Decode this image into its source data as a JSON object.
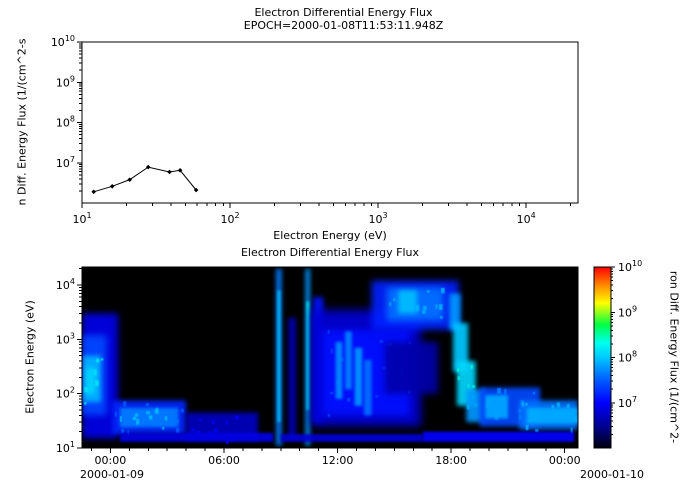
{
  "figure": {
    "bg_color": "#ffffff",
    "text_color": "#000000"
  },
  "chart_data": [
    {
      "type": "line",
      "panel": "top",
      "title": "Electron Differential Energy Flux",
      "subtitle": "EPOCH=2000-01-08T11:53:11.948Z",
      "xlabel": "Electron Energy (eV)",
      "ylabel": "n Diff. Energy Flux (1/(cm^2-s",
      "x_scale": "log",
      "y_scale": "log",
      "xlim": [
        10,
        22400
      ],
      "ylim": [
        1000000.0,
        10000000000.0
      ],
      "x_ticks": [
        10,
        100,
        1000,
        10000
      ],
      "y_ticks": [
        10000000.0,
        100000000.0,
        1000000000.0,
        10000000000.0
      ],
      "grid": false,
      "marker": "diamond",
      "line_color": "#000000",
      "points": [
        [
          12,
          1900000.0
        ],
        [
          16,
          2600000.0
        ],
        [
          21,
          3800000.0
        ],
        [
          28,
          7800000.0
        ],
        [
          39,
          5900000.0
        ],
        [
          46,
          6500000.0
        ],
        [
          59,
          2100000.0
        ]
      ]
    },
    {
      "type": "heatmap",
      "panel": "bottom",
      "title": "Electron Differential Energy Flux",
      "ylabel": "Electron Energy (eV)",
      "colorbar_label": "ron Diff. Energy Flux (1/(cm^2-",
      "x_scale": "time",
      "y_scale": "log",
      "time_range_hours": [
        -1.5,
        24.7
      ],
      "x_ticks_hours": [
        0,
        6,
        12,
        18,
        24
      ],
      "x_tick_labels": [
        "00:00",
        "06:00",
        "12:00",
        "18:00",
        "00:00"
      ],
      "x_minor_tick_every_hours": 1,
      "x_date_labels": [
        "2000-01-09",
        "2000-01-10"
      ],
      "energy_range": [
        10,
        21500
      ],
      "y_ticks": [
        10,
        100,
        1000,
        10000
      ],
      "flux_range": [
        1000000.0,
        10000000000.0
      ],
      "colorbar_ticks": [
        10000000.0,
        100000000.0,
        1000000000.0,
        10000000000.0
      ],
      "background": "#000000",
      "colormap": [
        [
          0,
          "#000010"
        ],
        [
          0.12,
          "#000090"
        ],
        [
          0.25,
          "#0000ff"
        ],
        [
          0.38,
          "#0060ff"
        ],
        [
          0.5,
          "#00c8ff"
        ],
        [
          0.58,
          "#00ffee"
        ],
        [
          0.68,
          "#00ff44"
        ],
        [
          0.8,
          "#ffff00"
        ],
        [
          0.9,
          "#ff8800"
        ],
        [
          1,
          "#ff0000"
        ]
      ],
      "noise_seed": 7,
      "features": [
        {
          "t": [
            -1.5,
            0.4
          ],
          "e": [
            15,
            3000
          ],
          "flux": 8000000.0,
          "blur": 3
        },
        {
          "t": [
            -1.5,
            -0.2
          ],
          "e": [
            40,
            1200
          ],
          "flux": 25000000.0,
          "blur": 3
        },
        {
          "t": [
            -1.45,
            -0.5
          ],
          "e": [
            70,
            500
          ],
          "flux": 80000000.0,
          "blur": 2,
          "speckle": 6
        },
        {
          "t": [
            -1.3,
            -0.8
          ],
          "e": [
            100,
            300
          ],
          "flux": 120000000.0,
          "blur": 2
        },
        {
          "t": [
            0.1,
            4.0
          ],
          "e": [
            18,
            75
          ],
          "flux": 16000000.0,
          "blur": 2,
          "speckle": 14
        },
        {
          "t": [
            0.5,
            3.6
          ],
          "e": [
            24,
            55
          ],
          "flux": 45000000.0,
          "blur": 1.5,
          "speckle": 10
        },
        {
          "t": [
            4.0,
            7.8
          ],
          "e": [
            14,
            45
          ],
          "flux": 5000000.0,
          "blur": 2,
          "speckle": 12
        },
        {
          "t": [
            8.75,
            9.05
          ],
          "e": [
            11,
            20000
          ],
          "flux": 45000000.0,
          "blur": 2
        },
        {
          "t": [
            8.82,
            8.98
          ],
          "e": [
            30,
            8000
          ],
          "flux": 90000000.0,
          "blur": 1
        },
        {
          "t": [
            9.4,
            9.8
          ],
          "e": [
            15,
            2500
          ],
          "flux": 4500000.0,
          "blur": 2
        },
        {
          "t": [
            10.3,
            10.55
          ],
          "e": [
            11,
            20000
          ],
          "flux": 60000000.0,
          "blur": 2
        },
        {
          "t": [
            10.36,
            10.5
          ],
          "e": [
            50,
            5000
          ],
          "flux": 180000000.0,
          "blur": 1
        },
        {
          "t": [
            10.7,
            11.25
          ],
          "e": [
            30,
            6000
          ],
          "flux": 13000000.0,
          "blur": 2.5
        },
        {
          "t": [
            10.6,
            16.4
          ],
          "e": [
            25,
            3500
          ],
          "flux": 6500000.0,
          "blur": 4
        },
        {
          "t": [
            11.2,
            15.8
          ],
          "e": [
            40,
            1500
          ],
          "flux": 12000000.0,
          "blur": 3,
          "speckle": 16
        },
        {
          "t": [
            11.9,
            12.25
          ],
          "e": [
            80,
            900
          ],
          "flux": 55000000.0,
          "blur": 1.5
        },
        {
          "t": [
            12.4,
            12.75
          ],
          "e": [
            120,
            1400
          ],
          "flux": 50000000.0,
          "blur": 1.5
        },
        {
          "t": [
            12.9,
            13.3
          ],
          "e": [
            60,
            700
          ],
          "flux": 60000000.0,
          "blur": 1.5
        },
        {
          "t": [
            13.4,
            13.8
          ],
          "e": [
            40,
            420
          ],
          "flux": 40000000.0,
          "blur": 1.5
        },
        {
          "t": [
            13.8,
            18.4
          ],
          "e": [
            1500,
            12000
          ],
          "flux": 15000000.0,
          "blur": 3
        },
        {
          "t": [
            14.6,
            17.6
          ],
          "e": [
            2200,
            9000
          ],
          "flux": 40000000.0,
          "blur": 3,
          "speckle": 10
        },
        {
          "t": [
            15.2,
            16.2
          ],
          "e": [
            3000,
            8000
          ],
          "flux": 90000000.0,
          "blur": 2
        },
        {
          "t": [
            14.5,
            17.3
          ],
          "e": [
            100,
            900
          ],
          "flux": 4000000.0,
          "blur": 3
        },
        {
          "t": [
            17.9,
            18.5
          ],
          "e": [
            1500,
            7000
          ],
          "flux": 60000000.0,
          "blur": 2
        },
        {
          "t": [
            18.1,
            18.9
          ],
          "e": [
            250,
            2000
          ],
          "flux": 100000000.0,
          "blur": 2
        },
        {
          "t": [
            18.3,
            19.3
          ],
          "e": [
            60,
            400
          ],
          "flux": 120000000.0,
          "blur": 2,
          "speckle": 8
        },
        {
          "t": [
            18.8,
            19.8
          ],
          "e": [
            30,
            120
          ],
          "flux": 60000000.0,
          "blur": 2
        },
        {
          "t": [
            19.5,
            22.7
          ],
          "e": [
            25,
            130
          ],
          "flux": 25000000.0,
          "blur": 2,
          "speckle": 12
        },
        {
          "t": [
            19.8,
            21.0
          ],
          "e": [
            35,
            95
          ],
          "flux": 70000000.0,
          "blur": 1.5
        },
        {
          "t": [
            21.6,
            24.7
          ],
          "e": [
            22,
            75
          ],
          "flux": 40000000.0,
          "blur": 2,
          "speckle": 14
        },
        {
          "t": [
            22.0,
            24.7
          ],
          "e": [
            28,
            55
          ],
          "flux": 75000000.0,
          "blur": 1.5
        },
        {
          "t": [
            0.5,
            8.6
          ],
          "e": [
            13,
            19
          ],
          "flux": 7500000.0,
          "blur": 1
        },
        {
          "t": [
            9.0,
            16.5
          ],
          "e": [
            13,
            18
          ],
          "flux": 6500000.0,
          "blur": 1
        },
        {
          "t": [
            16.5,
            24.5
          ],
          "e": [
            13,
            20
          ],
          "flux": 10000000.0,
          "blur": 1
        }
      ]
    }
  ]
}
